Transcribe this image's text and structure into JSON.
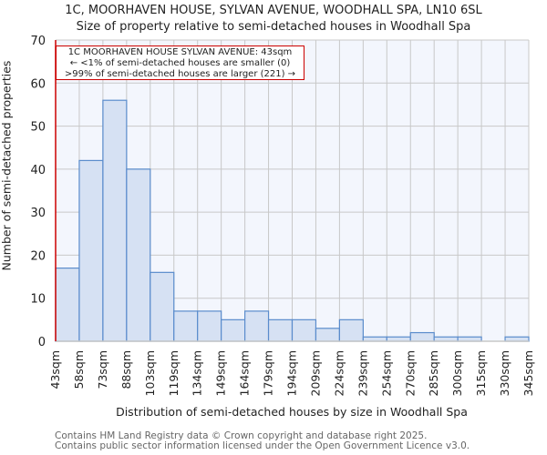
{
  "title_line1": "1C, MOORHAVEN HOUSE, SYLVAN AVENUE, WOODHALL SPA, LN10 6SL",
  "title_line2": "Size of property relative to semi-detached houses in Woodhall Spa",
  "annotation": {
    "line1": "1C MOORHAVEN HOUSE SYLVAN AVENUE: 43sqm",
    "line2": "← <1% of semi-detached houses are smaller (0)",
    "line3": ">99% of semi-detached houses are larger (221) →",
    "color": "#cc0000"
  },
  "footer_line1": "Contains HM Land Registry data © Crown copyright and database right 2025.",
  "footer_line2": "Contains public sector information licensed under the Open Government Licence v3.0.",
  "chart_data": {
    "type": "bar",
    "title": "1C, MOORHAVEN HOUSE, SYLVAN AVENUE, WOODHALL SPA, LN10 6SL — Size of property relative to semi-detached houses in Woodhall Spa",
    "xlabel": "Distribution of semi-detached houses by size in Woodhall Spa",
    "ylabel": "Number of semi-detached properties",
    "categories": [
      "43sqm",
      "58sqm",
      "73sqm",
      "88sqm",
      "103sqm",
      "119sqm",
      "134sqm",
      "149sqm",
      "164sqm",
      "179sqm",
      "194sqm",
      "209sqm",
      "224sqm",
      "239sqm",
      "254sqm",
      "270sqm",
      "285sqm",
      "300sqm",
      "315sqm",
      "330sqm",
      "345sqm"
    ],
    "values": [
      17,
      42,
      56,
      40,
      16,
      7,
      7,
      5,
      7,
      5,
      5,
      3,
      5,
      1,
      1,
      2,
      1,
      1,
      0,
      1
    ],
    "yticks": [
      0,
      10,
      20,
      30,
      40,
      50,
      60,
      70
    ],
    "ylim": [
      0,
      70
    ],
    "grid": true,
    "bar_fill": "#d6e1f3",
    "bar_edge": "#5a8ccc",
    "marker_x": "43sqm",
    "marker_color": "#cc0000"
  }
}
